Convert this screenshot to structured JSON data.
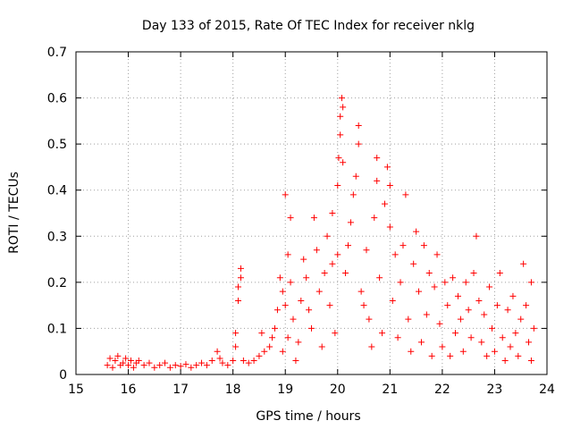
{
  "chart_data": {
    "type": "scatter",
    "title": "Day 133 of 2015, Rate Of TEC Index for receiver nklg",
    "xlabel": "GPS time / hours",
    "ylabel": "ROTI / TECUs",
    "xlim": [
      15,
      24
    ],
    "ylim": [
      0,
      0.7
    ],
    "x_ticks": [
      15,
      16,
      17,
      18,
      19,
      20,
      21,
      22,
      23,
      24
    ],
    "x_tick_labels": [
      "15",
      "16",
      "17",
      "18",
      "19",
      "20",
      "21",
      "22",
      "23",
      "24"
    ],
    "y_ticks": [
      0,
      0.1,
      0.2,
      0.3,
      0.4,
      0.5,
      0.6,
      0.7
    ],
    "y_tick_labels": [
      "0",
      "0.1",
      "0.2",
      "0.3",
      "0.4",
      "0.5",
      "0.6",
      "0.7"
    ],
    "grid": true,
    "marker": "+",
    "color": "#ff0000",
    "series": [
      {
        "name": "ROTI",
        "points": [
          [
            15.6,
            0.02
          ],
          [
            15.65,
            0.035
          ],
          [
            15.7,
            0.015
          ],
          [
            15.75,
            0.03
          ],
          [
            15.8,
            0.04
          ],
          [
            15.85,
            0.02
          ],
          [
            15.9,
            0.025
          ],
          [
            15.95,
            0.035
          ],
          [
            16.0,
            0.02
          ],
          [
            16.05,
            0.03
          ],
          [
            16.1,
            0.015
          ],
          [
            16.15,
            0.025
          ],
          [
            16.2,
            0.03
          ],
          [
            16.3,
            0.02
          ],
          [
            16.4,
            0.025
          ],
          [
            16.5,
            0.015
          ],
          [
            16.6,
            0.02
          ],
          [
            16.7,
            0.025
          ],
          [
            16.8,
            0.015
          ],
          [
            16.9,
            0.02
          ],
          [
            17.0,
            0.018
          ],
          [
            17.1,
            0.022
          ],
          [
            17.2,
            0.015
          ],
          [
            17.3,
            0.02
          ],
          [
            17.4,
            0.025
          ],
          [
            17.5,
            0.02
          ],
          [
            17.6,
            0.03
          ],
          [
            17.7,
            0.05
          ],
          [
            17.75,
            0.035
          ],
          [
            17.8,
            0.025
          ],
          [
            17.9,
            0.02
          ],
          [
            18.0,
            0.03
          ],
          [
            18.05,
            0.09
          ],
          [
            18.05,
            0.06
          ],
          [
            18.1,
            0.16
          ],
          [
            18.1,
            0.19
          ],
          [
            18.15,
            0.23
          ],
          [
            18.15,
            0.21
          ],
          [
            18.2,
            0.03
          ],
          [
            18.3,
            0.025
          ],
          [
            18.4,
            0.03
          ],
          [
            18.5,
            0.04
          ],
          [
            18.55,
            0.09
          ],
          [
            18.6,
            0.05
          ],
          [
            18.7,
            0.06
          ],
          [
            18.75,
            0.08
          ],
          [
            18.8,
            0.1
          ],
          [
            18.85,
            0.14
          ],
          [
            18.9,
            0.21
          ],
          [
            18.95,
            0.18
          ],
          [
            18.95,
            0.05
          ],
          [
            19.0,
            0.39
          ],
          [
            19.0,
            0.15
          ],
          [
            19.05,
            0.26
          ],
          [
            19.05,
            0.08
          ],
          [
            19.1,
            0.34
          ],
          [
            19.1,
            0.2
          ],
          [
            19.15,
            0.12
          ],
          [
            19.2,
            0.03
          ],
          [
            19.25,
            0.07
          ],
          [
            19.3,
            0.16
          ],
          [
            19.35,
            0.25
          ],
          [
            19.4,
            0.21
          ],
          [
            19.45,
            0.14
          ],
          [
            19.5,
            0.1
          ],
          [
            19.55,
            0.34
          ],
          [
            19.6,
            0.27
          ],
          [
            19.65,
            0.18
          ],
          [
            19.7,
            0.06
          ],
          [
            19.75,
            0.22
          ],
          [
            19.8,
            0.3
          ],
          [
            19.85,
            0.15
          ],
          [
            19.9,
            0.35
          ],
          [
            19.9,
            0.24
          ],
          [
            19.95,
            0.09
          ],
          [
            20.0,
            0.41
          ],
          [
            20.0,
            0.26
          ],
          [
            20.02,
            0.47
          ],
          [
            20.05,
            0.52
          ],
          [
            20.05,
            0.56
          ],
          [
            20.08,
            0.6
          ],
          [
            20.1,
            0.58
          ],
          [
            20.1,
            0.46
          ],
          [
            20.15,
            0.22
          ],
          [
            20.2,
            0.28
          ],
          [
            20.25,
            0.33
          ],
          [
            20.3,
            0.39
          ],
          [
            20.35,
            0.43
          ],
          [
            20.4,
            0.5
          ],
          [
            20.4,
            0.54
          ],
          [
            20.45,
            0.18
          ],
          [
            20.5,
            0.15
          ],
          [
            20.55,
            0.27
          ],
          [
            20.6,
            0.12
          ],
          [
            20.65,
            0.06
          ],
          [
            20.7,
            0.34
          ],
          [
            20.75,
            0.42
          ],
          [
            20.75,
            0.47
          ],
          [
            20.8,
            0.21
          ],
          [
            20.85,
            0.09
          ],
          [
            20.9,
            0.37
          ],
          [
            20.95,
            0.45
          ],
          [
            21.0,
            0.32
          ],
          [
            21.0,
            0.41
          ],
          [
            21.05,
            0.16
          ],
          [
            21.1,
            0.26
          ],
          [
            21.15,
            0.08
          ],
          [
            21.2,
            0.2
          ],
          [
            21.25,
            0.28
          ],
          [
            21.3,
            0.39
          ],
          [
            21.35,
            0.12
          ],
          [
            21.4,
            0.05
          ],
          [
            21.45,
            0.24
          ],
          [
            21.5,
            0.31
          ],
          [
            21.55,
            0.18
          ],
          [
            21.6,
            0.07
          ],
          [
            21.65,
            0.28
          ],
          [
            21.7,
            0.13
          ],
          [
            21.75,
            0.22
          ],
          [
            21.8,
            0.04
          ],
          [
            21.85,
            0.19
          ],
          [
            21.9,
            0.26
          ],
          [
            21.95,
            0.11
          ],
          [
            22.0,
            0.06
          ],
          [
            22.05,
            0.2
          ],
          [
            22.1,
            0.15
          ],
          [
            22.15,
            0.04
          ],
          [
            22.2,
            0.21
          ],
          [
            22.25,
            0.09
          ],
          [
            22.3,
            0.17
          ],
          [
            22.35,
            0.12
          ],
          [
            22.4,
            0.05
          ],
          [
            22.45,
            0.2
          ],
          [
            22.5,
            0.14
          ],
          [
            22.55,
            0.08
          ],
          [
            22.6,
            0.22
          ],
          [
            22.65,
            0.3
          ],
          [
            22.7,
            0.16
          ],
          [
            22.75,
            0.07
          ],
          [
            22.8,
            0.13
          ],
          [
            22.85,
            0.04
          ],
          [
            22.9,
            0.19
          ],
          [
            22.95,
            0.1
          ],
          [
            23.0,
            0.05
          ],
          [
            23.05,
            0.15
          ],
          [
            23.1,
            0.22
          ],
          [
            23.15,
            0.08
          ],
          [
            23.2,
            0.03
          ],
          [
            23.25,
            0.14
          ],
          [
            23.3,
            0.06
          ],
          [
            23.35,
            0.17
          ],
          [
            23.4,
            0.09
          ],
          [
            23.45,
            0.04
          ],
          [
            23.5,
            0.12
          ],
          [
            23.55,
            0.24
          ],
          [
            23.6,
            0.15
          ],
          [
            23.65,
            0.07
          ],
          [
            23.7,
            0.2
          ],
          [
            23.7,
            0.03
          ],
          [
            23.75,
            0.1
          ]
        ]
      }
    ]
  }
}
